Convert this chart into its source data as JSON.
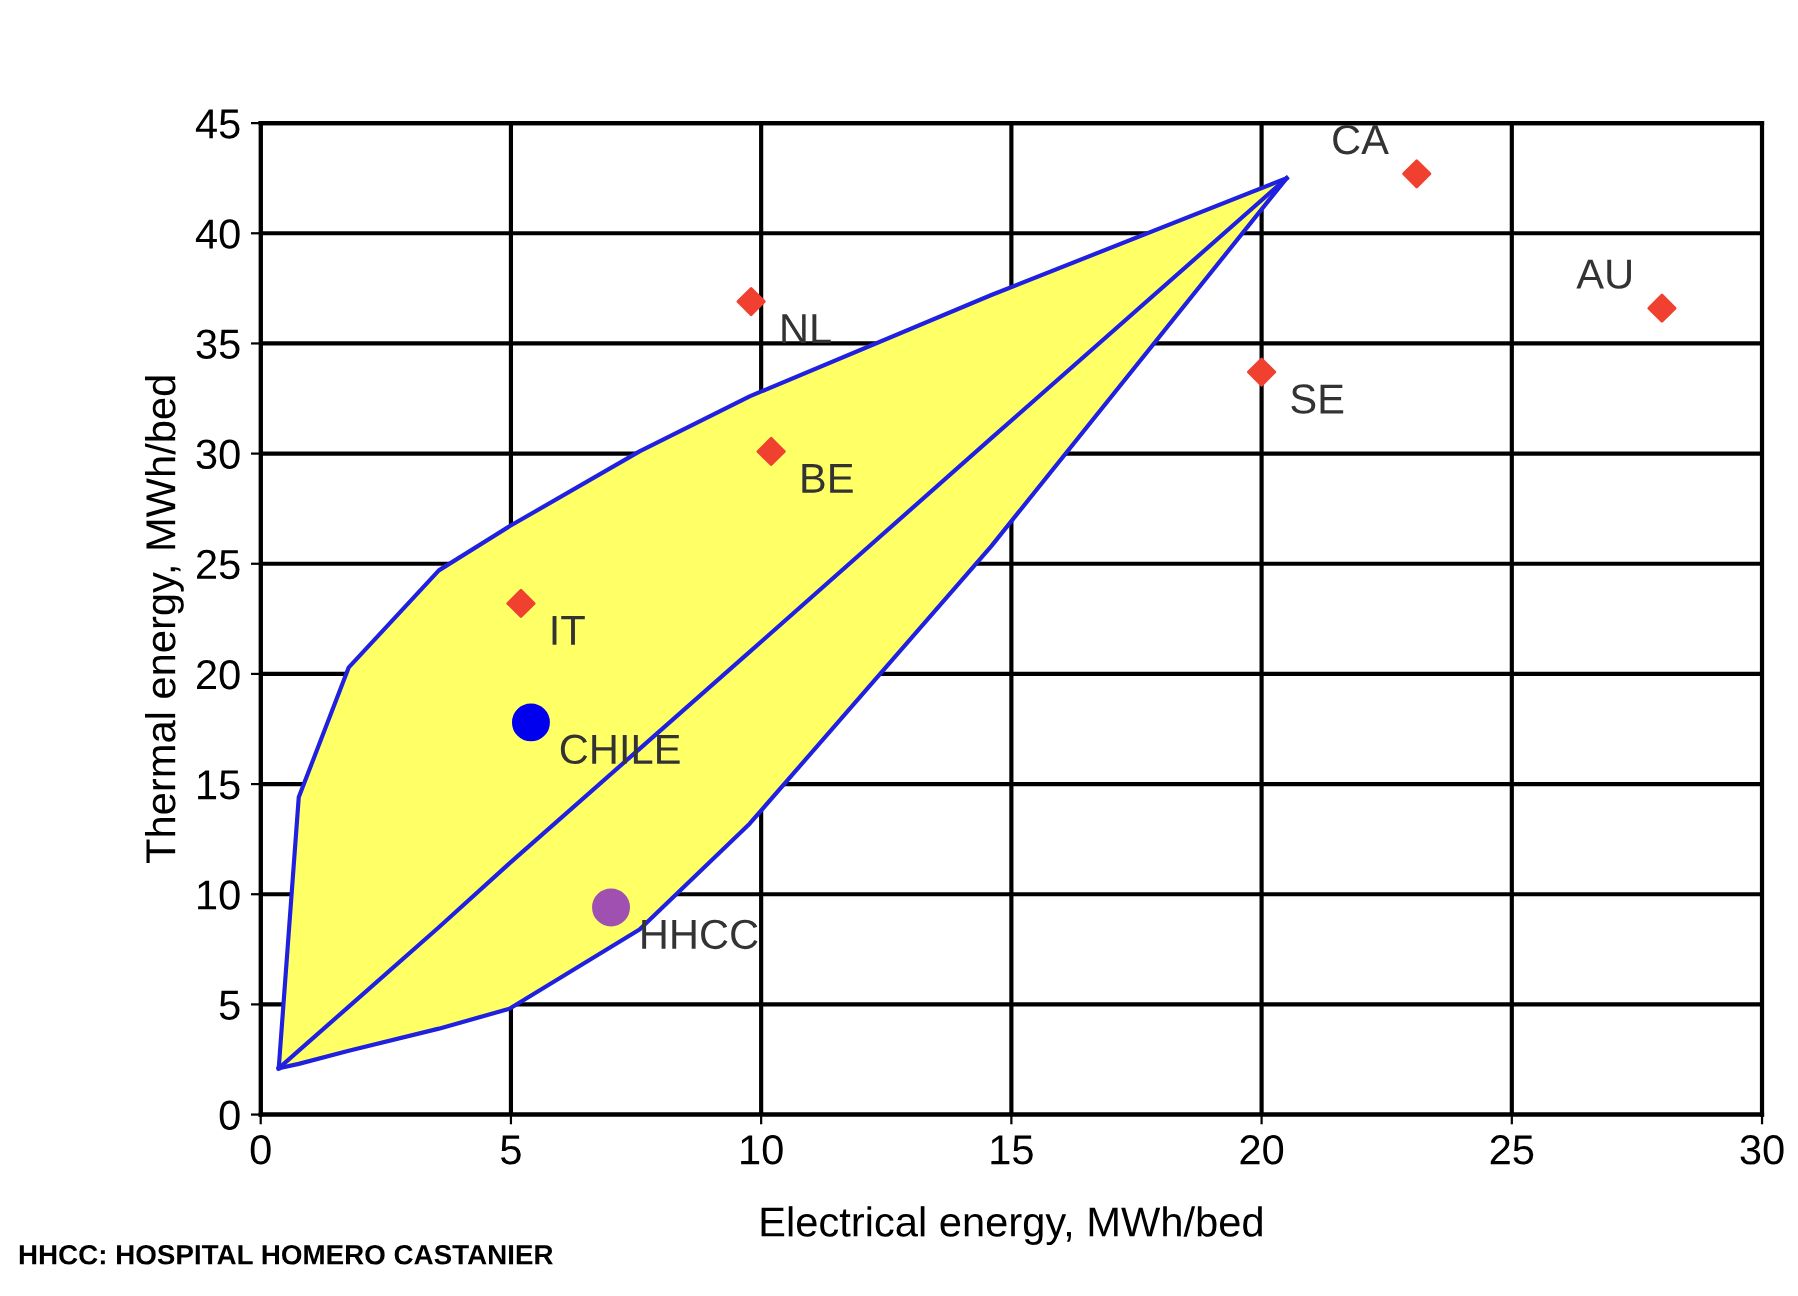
{
  "chart_data": {
    "type": "scatter",
    "xlabel": "Electrical energy, MWh/bed",
    "ylabel": "Thermal energy, MWh/bed",
    "xlim": [
      0,
      30
    ],
    "xticks": [
      0,
      5,
      10,
      15,
      20,
      25,
      30
    ],
    "ylim": [
      0,
      45
    ],
    "yticks": [
      0,
      5,
      10,
      15,
      20,
      25,
      30,
      35,
      40,
      45
    ],
    "grid": true,
    "legend": false,
    "series": [
      {
        "type": "line",
        "color": "#2020e0",
        "marker": "none",
        "x": [
          0.36,
          0.76,
          1.76,
          3.56,
          4.97,
          7.57,
          9.77,
          14.6,
          20.5
        ],
        "values": [
          2.1,
          2.9,
          4.9,
          8.5,
          11.4,
          16.6,
          21.0,
          30.7,
          42.5
        ],
        "upper": [
          2.1,
          14.4,
          20.3,
          24.7,
          26.7,
          30.1,
          32.6,
          37.2,
          42.5
        ],
        "lower": [
          2.1,
          2.3,
          2.9,
          3.9,
          4.8,
          8.4,
          13.2,
          25.8,
          42.5
        ]
      },
      {
        "color": "#f04030",
        "marker": "diamond",
        "x": [
          5.2,
          9.8,
          10.2,
          20.0,
          23.1,
          28.0
        ],
        "values": [
          23.2,
          36.9,
          30.1,
          33.7,
          42.7,
          36.6
        ]
      },
      {
        "color": "#0000ee",
        "marker": "circle",
        "x": [
          5.4
        ],
        "values": [
          17.8
        ]
      },
      {
        "color": "#a050b0",
        "marker": "circle",
        "x": [
          7.0
        ],
        "values": [
          9.4
        ]
      }
    ],
    "annotations": [
      {
        "text": "IT",
        "x": 5.2,
        "y": 23.2
      },
      {
        "text": "NL",
        "x": 9.8,
        "y": 36.9
      },
      {
        "text": "BE",
        "x": 10.2,
        "y": 30.1
      },
      {
        "text": "SE",
        "x": 20.0,
        "y": 33.7
      },
      {
        "text": "CA",
        "x": 23.1,
        "y": 42.7
      },
      {
        "text": "AU",
        "x": 28.0,
        "y": 36.6
      },
      {
        "text": "CHILE",
        "x": 5.4,
        "y": 17.8
      },
      {
        "text": "HHCC",
        "x": 7.0,
        "y": 9.4
      },
      "HHCC: HOSPITAL HOMERO CASTANIER"
    ]
  }
}
